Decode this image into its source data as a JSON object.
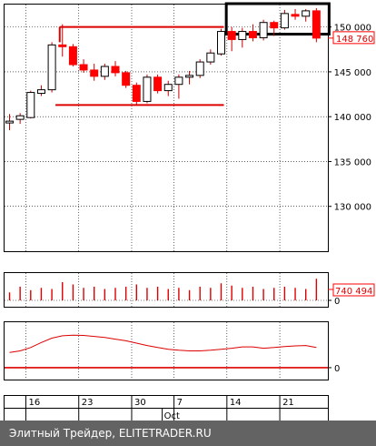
{
  "chart_data": {
    "type": "candlestick",
    "main": {
      "y_ticks": [
        130000,
        135000,
        140000,
        145000,
        150000
      ],
      "y_tick_labels": [
        "130 000",
        "135 000",
        "140 000",
        "145 000",
        "150 000"
      ],
      "ylim": [
        125000,
        152500
      ],
      "last_price_label": "148 760",
      "candles": [
        {
          "o": 139300,
          "h": 140300,
          "l": 138500,
          "c": 139500
        },
        {
          "o": 139700,
          "h": 140400,
          "l": 139200,
          "c": 140100
        },
        {
          "o": 139900,
          "h": 142900,
          "l": 139800,
          "c": 142700
        },
        {
          "o": 142600,
          "h": 143500,
          "l": 142300,
          "c": 143000
        },
        {
          "o": 143000,
          "h": 148300,
          "l": 142700,
          "c": 148000
        },
        {
          "o": 148000,
          "h": 150300,
          "l": 146700,
          "c": 147800
        },
        {
          "o": 147800,
          "h": 148100,
          "l": 145600,
          "c": 145800
        },
        {
          "o": 145800,
          "h": 146400,
          "l": 144900,
          "c": 145200
        },
        {
          "o": 145200,
          "h": 145900,
          "l": 144000,
          "c": 144500
        },
        {
          "o": 144500,
          "h": 145900,
          "l": 144100,
          "c": 145600
        },
        {
          "o": 145600,
          "h": 146200,
          "l": 144500,
          "c": 144900
        },
        {
          "o": 144900,
          "h": 145100,
          "l": 143200,
          "c": 143500
        },
        {
          "o": 143500,
          "h": 143800,
          "l": 141300,
          "c": 141700
        },
        {
          "o": 141700,
          "h": 144700,
          "l": 141500,
          "c": 144400
        },
        {
          "o": 144400,
          "h": 144700,
          "l": 142600,
          "c": 142900
        },
        {
          "o": 142900,
          "h": 144000,
          "l": 142300,
          "c": 143600
        },
        {
          "o": 143600,
          "h": 144700,
          "l": 142000,
          "c": 144400
        },
        {
          "o": 144400,
          "h": 145100,
          "l": 143600,
          "c": 144600
        },
        {
          "o": 144600,
          "h": 146400,
          "l": 144300,
          "c": 146100
        },
        {
          "o": 146100,
          "h": 147500,
          "l": 145800,
          "c": 147100
        },
        {
          "o": 147000,
          "h": 149800,
          "l": 146800,
          "c": 149500
        },
        {
          "o": 149500,
          "h": 150000,
          "l": 147300,
          "c": 148600
        },
        {
          "o": 148600,
          "h": 149900,
          "l": 147700,
          "c": 149500
        },
        {
          "o": 149500,
          "h": 150300,
          "l": 148400,
          "c": 148800
        },
        {
          "o": 148800,
          "h": 150800,
          "l": 148500,
          "c": 150500
        },
        {
          "o": 150500,
          "h": 150700,
          "l": 149000,
          "c": 149900
        },
        {
          "o": 149900,
          "h": 151900,
          "l": 149700,
          "c": 151500
        },
        {
          "o": 151400,
          "h": 152000,
          "l": 150800,
          "c": 151200
        },
        {
          "o": 151200,
          "h": 152000,
          "l": 150600,
          "c": 151800
        },
        {
          "o": 151800,
          "h": 152100,
          "l": 148300,
          "c": 148760
        }
      ],
      "resistance_line": {
        "value": 150000,
        "from_index": 5,
        "to_index": 20
      },
      "support_line": {
        "value": 141300,
        "from_index": 4,
        "to_index": 20
      },
      "highlight_box": {
        "from_index": 21,
        "to_index": 29,
        "y_top": 152600,
        "y_bottom": 149200
      }
    },
    "volume": {
      "value_label": "740 494",
      "zero_label": "0",
      "values": [
        35,
        60,
        45,
        55,
        50,
        80,
        70,
        55,
        60,
        50,
        55,
        60,
        70,
        55,
        60,
        50,
        55,
        45,
        60,
        55,
        75,
        65,
        55,
        60,
        50,
        55,
        60,
        55,
        50,
        95
      ],
      "ymax": 100
    },
    "oscillator": {
      "zero_label": "0",
      "values": [
        0.45,
        0.5,
        0.6,
        0.75,
        0.88,
        0.95,
        0.97,
        0.96,
        0.93,
        0.9,
        0.85,
        0.8,
        0.73,
        0.66,
        0.6,
        0.55,
        0.52,
        0.5,
        0.5,
        0.52,
        0.55,
        0.58,
        0.62,
        0.62,
        0.58,
        0.6,
        0.63,
        0.65,
        0.66,
        0.6
      ],
      "ylim": [
        -0.3,
        1.3
      ]
    },
    "x_ticks": [
      {
        "index": 2,
        "label": "16"
      },
      {
        "index": 7,
        "label": "23"
      },
      {
        "index": 12,
        "label": "30"
      },
      {
        "index": 16,
        "label": "7"
      },
      {
        "index": 21,
        "label": "14"
      },
      {
        "index": 26,
        "label": "21"
      }
    ],
    "x_month_label": "Oct",
    "x_month_index": 14.6
  },
  "footer": {
    "text": "Элитный Трейдер, ELITETRADER.RU"
  },
  "colors": {
    "up_fill": "#ffffff",
    "down_fill": "#ff0000",
    "outline": "#000000",
    "wick": "#cc0000",
    "trendline": "#dd0000",
    "grid": "#000000",
    "footer_bg": "#636363"
  }
}
